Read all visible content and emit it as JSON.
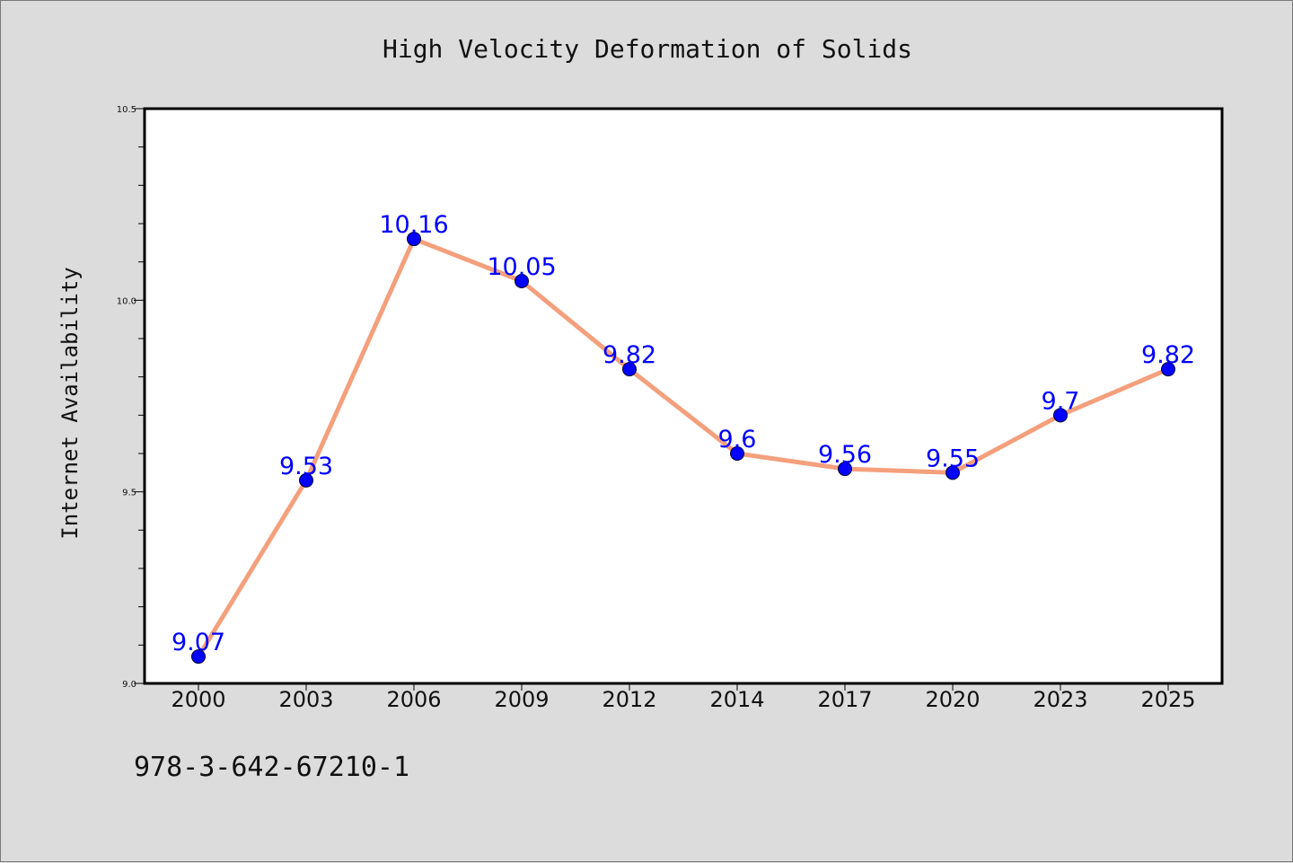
{
  "footer": {
    "code": "978-3-642-67210-1"
  },
  "chart_data": {
    "type": "line",
    "title": "High Velocity Deformation of Solids",
    "xlabel": "",
    "ylabel": "Internet Availability",
    "categories": [
      "2000",
      "2003",
      "2006",
      "2009",
      "2012",
      "2014",
      "2017",
      "2020",
      "2023",
      "2025"
    ],
    "series": [
      {
        "values": [
          9.07,
          9.53,
          10.16,
          10.05,
          9.82,
          9.6,
          9.56,
          9.55,
          9.7,
          9.82
        ],
        "labels": [
          "9.07",
          "9.53",
          "10.16",
          "10.05",
          "9.82",
          "9.6",
          "9.56",
          "9.55",
          "9.7",
          "9.82"
        ],
        "line_color": "#f4a07c",
        "marker_color": "#0000ff"
      }
    ],
    "ylim": [
      9.0,
      10.5
    ],
    "yticks": [
      "9.0",
      "9.5",
      "10.0",
      "10.5"
    ],
    "y_major_ticks": [
      9.0,
      9.5,
      10.0,
      10.5
    ],
    "y_minor_step": 0.1,
    "grid": false,
    "legend": "none"
  }
}
